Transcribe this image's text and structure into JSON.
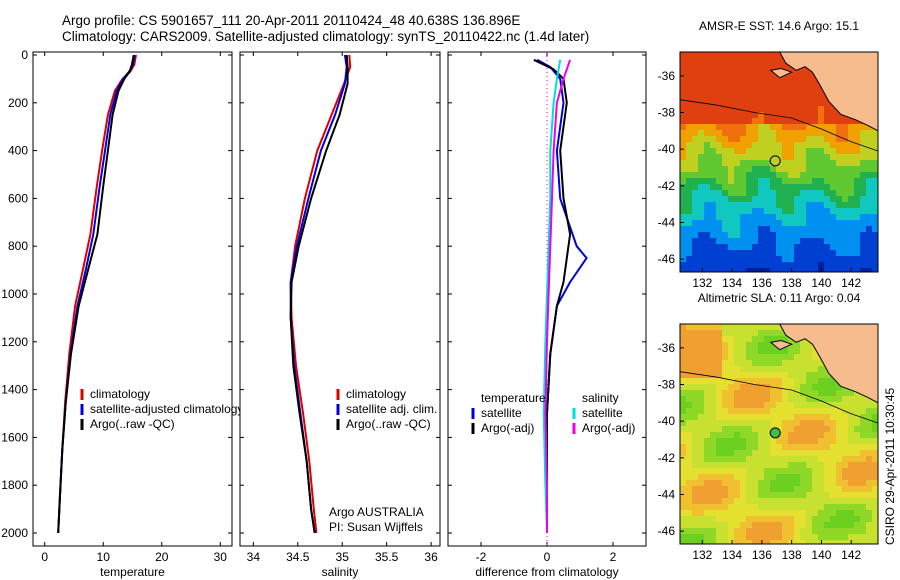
{
  "titles": {
    "line1": "Argo profile: CS 5901657_111 20-Apr-2011 20110424_48 40.638S 136.896E",
    "line2": "Climatology: CARS2009. Satellite-adjusted climatology: synTS_20110422.nc (1.4d later)"
  },
  "credit": "CSIRO 29-Apr-2011 10:30:45",
  "colors": {
    "climatology": "#dd0000",
    "satellite": "#0000dd",
    "argo": "#000000",
    "sat_salinity": "#00dddd",
    "argo_salinity": "#ee00ee",
    "land": "#f6bc8e"
  },
  "chart_data": [
    {
      "type": "line",
      "panel": "temperature",
      "xlabel": "temperature",
      "xlim": [
        -2,
        32
      ],
      "xticks": [
        "0",
        "10",
        "20",
        "30"
      ],
      "ylim": [
        2050,
        0
      ],
      "yticks": [
        "0",
        "200",
        "400",
        "600",
        "800",
        "1000",
        "1200",
        "1400",
        "1600",
        "1800",
        "2000"
      ],
      "legend": [
        "climatology",
        "satellite-adjusted climatology",
        "Argo(..raw -QC)"
      ],
      "series": [
        {
          "name": "climatology",
          "color": "climatology",
          "points": [
            [
              15.6,
              0
            ],
            [
              15.3,
              40
            ],
            [
              14.6,
              70
            ],
            [
              13.3,
              100
            ],
            [
              12.0,
              150
            ],
            [
              10.8,
              250
            ],
            [
              9.8,
              400
            ],
            [
              8.9,
              550
            ],
            [
              7.8,
              750
            ],
            [
              6.5,
              900
            ],
            [
              5.2,
              1050
            ],
            [
              4.2,
              1250
            ],
            [
              3.5,
              1450
            ],
            [
              3.0,
              1650
            ],
            [
              2.6,
              1850
            ],
            [
              2.3,
              2000
            ]
          ]
        },
        {
          "name": "satellite-adjusted climatology",
          "color": "satellite",
          "points": [
            [
              15.4,
              0
            ],
            [
              15.1,
              40
            ],
            [
              14.4,
              70
            ],
            [
              13.4,
              100
            ],
            [
              12.3,
              150
            ],
            [
              11.2,
              250
            ],
            [
              10.3,
              400
            ],
            [
              9.4,
              550
            ],
            [
              8.3,
              750
            ],
            [
              7.0,
              900
            ],
            [
              5.6,
              1050
            ],
            [
              4.4,
              1250
            ],
            [
              3.6,
              1450
            ],
            [
              3.0,
              1650
            ],
            [
              2.6,
              1850
            ],
            [
              2.3,
              2000
            ]
          ]
        },
        {
          "name": "Argo(..raw -QC)",
          "color": "argo",
          "points": [
            [
              15.2,
              0
            ],
            [
              14.9,
              40
            ],
            [
              14.5,
              70
            ],
            [
              13.6,
              100
            ],
            [
              12.6,
              150
            ],
            [
              11.6,
              250
            ],
            [
              10.8,
              400
            ],
            [
              10.0,
              550
            ],
            [
              9.0,
              750
            ],
            [
              7.4,
              900
            ],
            [
              5.8,
              1050
            ],
            [
              4.5,
              1250
            ],
            [
              3.6,
              1450
            ],
            [
              3.0,
              1650
            ],
            [
              2.6,
              1850
            ],
            [
              2.3,
              2000
            ]
          ]
        }
      ]
    },
    {
      "type": "line",
      "panel": "salinity",
      "xlabel": "salinity",
      "xlim": [
        33.85,
        36.1
      ],
      "xticks": [
        "34",
        "34.5",
        "35",
        "35.5",
        "36"
      ],
      "ylim": [
        2050,
        0
      ],
      "legend": [
        "climatology",
        "satellite adj. clim.",
        "Argo(..raw -QC)"
      ],
      "annotation": [
        "Argo AUSTRALIA",
        "PI: Susan Wijffels"
      ],
      "series": [
        {
          "name": "climatology",
          "color": "climatology",
          "points": [
            [
              35.08,
              0
            ],
            [
              35.09,
              50
            ],
            [
              35.02,
              120
            ],
            [
              34.88,
              250
            ],
            [
              34.72,
              400
            ],
            [
              34.58,
              600
            ],
            [
              34.47,
              800
            ],
            [
              34.42,
              950
            ],
            [
              34.43,
              1100
            ],
            [
              34.48,
              1300
            ],
            [
              34.56,
              1500
            ],
            [
              34.63,
              1700
            ],
            [
              34.68,
              1900
            ],
            [
              34.71,
              2000
            ]
          ]
        },
        {
          "name": "satellite adj. clim.",
          "color": "satellite",
          "points": [
            [
              35.03,
              0
            ],
            [
              35.05,
              50
            ],
            [
              35.03,
              120
            ],
            [
              34.92,
              250
            ],
            [
              34.76,
              400
            ],
            [
              34.62,
              600
            ],
            [
              34.49,
              800
            ],
            [
              34.42,
              950
            ],
            [
              34.42,
              1100
            ],
            [
              34.46,
              1300
            ],
            [
              34.53,
              1500
            ],
            [
              34.6,
              1700
            ],
            [
              34.65,
              1900
            ],
            [
              34.69,
              2000
            ]
          ]
        },
        {
          "name": "Argo(..raw -QC)",
          "color": "argo",
          "points": [
            [
              35.05,
              0
            ],
            [
              35.06,
              50
            ],
            [
              35.06,
              120
            ],
            [
              34.97,
              250
            ],
            [
              34.82,
              400
            ],
            [
              34.65,
              600
            ],
            [
              34.51,
              800
            ],
            [
              34.43,
              950
            ],
            [
              34.42,
              1100
            ],
            [
              34.45,
              1300
            ],
            [
              34.52,
              1500
            ],
            [
              34.6,
              1700
            ],
            [
              34.65,
              1900
            ],
            [
              34.69,
              2000
            ]
          ]
        }
      ]
    },
    {
      "type": "line",
      "panel": "difference",
      "xlabel": "difference from climatology",
      "xlim": [
        -3,
        3
      ],
      "xticks": [
        "-2",
        "0",
        "2"
      ],
      "ylim": [
        2050,
        0
      ],
      "legend_left": [
        "temperature",
        "satellite",
        "Argo(-adj)"
      ],
      "legend_right": [
        "salinity",
        "satellite",
        "Argo(-adj)"
      ],
      "series": [
        {
          "name": "temperature satellite",
          "color": "satellite",
          "points": [
            [
              -0.3,
              20
            ],
            [
              0.1,
              50
            ],
            [
              0.4,
              100
            ],
            [
              0.5,
              200
            ],
            [
              0.3,
              400
            ],
            [
              0.4,
              600
            ],
            [
              0.9,
              800
            ],
            [
              1.2,
              850
            ],
            [
              0.7,
              950
            ],
            [
              0.3,
              1050
            ],
            [
              0.1,
              1250
            ],
            [
              0.0,
              1500
            ],
            [
              0.0,
              2000
            ]
          ]
        },
        {
          "name": "temperature Argo(-adj)",
          "color": "argo",
          "points": [
            [
              -0.4,
              20
            ],
            [
              0.2,
              60
            ],
            [
              0.5,
              100
            ],
            [
              0.6,
              200
            ],
            [
              0.4,
              400
            ],
            [
              0.5,
              600
            ],
            [
              0.7,
              750
            ],
            [
              0.6,
              850
            ],
            [
              0.5,
              950
            ],
            [
              0.3,
              1050
            ],
            [
              0.1,
              1250
            ],
            [
              0.0,
              1500
            ],
            [
              0.0,
              2000
            ]
          ]
        },
        {
          "name": "salinity satellite",
          "color": "sat_salinity",
          "points": [
            [
              0.4,
              20
            ],
            [
              0.3,
              100
            ],
            [
              0.2,
              200
            ],
            [
              0.1,
              400
            ],
            [
              0.1,
              600
            ],
            [
              0.05,
              800
            ],
            [
              0.0,
              1000
            ],
            [
              -0.05,
              1200
            ],
            [
              -0.1,
              1500
            ],
            [
              -0.05,
              1800
            ],
            [
              0.0,
              2000
            ]
          ]
        },
        {
          "name": "salinity Argo(-adj)",
          "color": "argo_salinity",
          "points": [
            [
              0.7,
              20
            ],
            [
              0.5,
              100
            ],
            [
              0.3,
              200
            ],
            [
              0.2,
              400
            ],
            [
              0.15,
              600
            ],
            [
              0.1,
              800
            ],
            [
              0.05,
              1000
            ],
            [
              0.0,
              1200
            ],
            [
              -0.05,
              1500
            ],
            [
              0.0,
              1800
            ],
            [
              0.0,
              2000
            ]
          ]
        }
      ]
    },
    {
      "type": "heatmap",
      "panel": "sst",
      "title": "AMSR-E SST: 14.6 Argo: 15.1",
      "xticks": [
        "132",
        "134",
        "136",
        "138",
        "140",
        "142"
      ],
      "yticks": [
        "-36",
        "-38",
        "-40",
        "-42",
        "-44",
        "-46"
      ],
      "xlim": [
        130.5,
        143.8
      ],
      "ylim": [
        -46.7,
        -34.7
      ],
      "marker": {
        "lon": 136.896,
        "lat": -40.638
      }
    },
    {
      "type": "heatmap",
      "panel": "sla",
      "title": "Altimetric SLA: 0.11 Argo: 0.04",
      "xticks": [
        "132",
        "134",
        "136",
        "138",
        "140",
        "142"
      ],
      "yticks": [
        "-36",
        "-38",
        "-40",
        "-42",
        "-44",
        "-46"
      ],
      "xlim": [
        130.5,
        143.8
      ],
      "ylim": [
        -46.7,
        -34.7
      ],
      "marker": {
        "lon": 136.896,
        "lat": -40.638
      }
    }
  ]
}
